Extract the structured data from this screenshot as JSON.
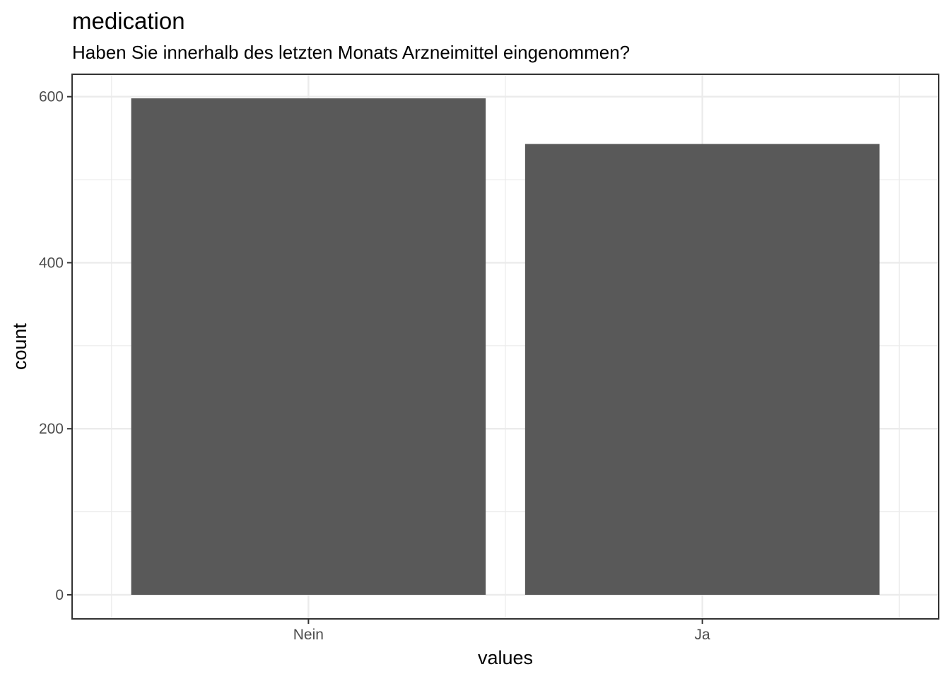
{
  "chart_data": {
    "type": "bar",
    "title": "medication",
    "subtitle": "Haben Sie innerhalb des letzten Monats Arzneimittel eingenommen?",
    "xlabel": "values",
    "ylabel": "count",
    "categories": [
      "Nein",
      "Ja"
    ],
    "values": [
      598,
      543
    ],
    "ylim": [
      -29,
      627
    ],
    "yticks": [
      0,
      200,
      400,
      600
    ],
    "ytick_labels": [
      "0",
      "200",
      "400",
      "600"
    ],
    "grid": true,
    "legend": "none",
    "bar_color": "#595959",
    "grid_color": "#ebebeb",
    "panel_border_color": "#333333"
  }
}
